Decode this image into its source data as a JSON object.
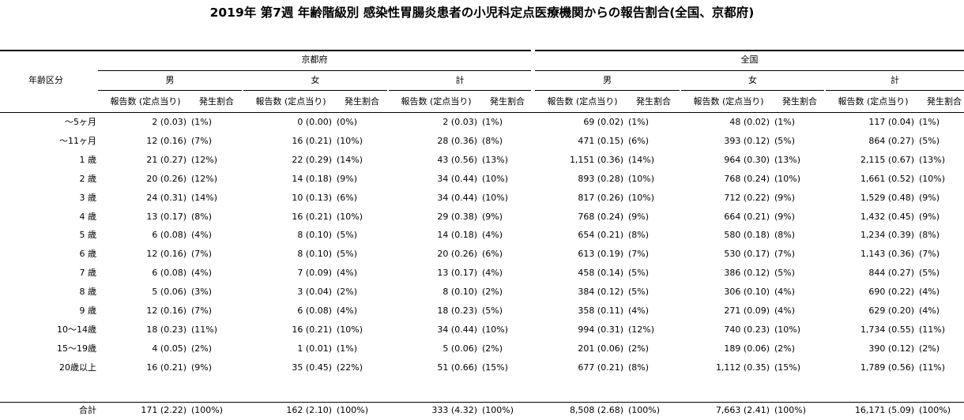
{
  "title": "2019年 第7週 年齢階級別 感染性胃腸炎患者の小児科定点医療機関からの報告割合(全国、京都府)",
  "headers": {
    "age_label": "年齢区分",
    "regions": [
      "京都府",
      "全国"
    ],
    "sexes": [
      "男",
      "女",
      "計"
    ],
    "col_report": "報告数 (定点当り)",
    "col_rate": "発生割合"
  },
  "rows": [
    {
      "age": "～5ヶ月",
      "values": [
        [
          "2 (0.03)",
          "(1%)"
        ],
        [
          "0 (0.00)",
          "(0%)"
        ],
        [
          "2 (0.03)",
          "(1%)"
        ],
        [
          "69 (0.02)",
          "(1%)"
        ],
        [
          "48 (0.02)",
          "(1%)"
        ],
        [
          "117 (0.04)",
          "(1%)"
        ]
      ]
    },
    {
      "age": "～11ヶ月",
      "values": [
        [
          "12 (0.16)",
          "(7%)"
        ],
        [
          "16 (0.21)",
          "(10%)"
        ],
        [
          "28 (0.36)",
          "(8%)"
        ],
        [
          "471 (0.15)",
          "(6%)"
        ],
        [
          "393 (0.12)",
          "(5%)"
        ],
        [
          "864 (0.27)",
          "(5%)"
        ]
      ]
    },
    {
      "age": "1 歳",
      "values": [
        [
          "21 (0.27)",
          "(12%)"
        ],
        [
          "22 (0.29)",
          "(14%)"
        ],
        [
          "43 (0.56)",
          "(13%)"
        ],
        [
          "1,151 (0.36)",
          "(14%)"
        ],
        [
          "964 (0.30)",
          "(13%)"
        ],
        [
          "2,115 (0.67)",
          "(13%)"
        ]
      ]
    },
    {
      "age": "2 歳",
      "values": [
        [
          "20 (0.26)",
          "(12%)"
        ],
        [
          "14 (0.18)",
          "(9%)"
        ],
        [
          "34 (0.44)",
          "(10%)"
        ],
        [
          "893 (0.28)",
          "(10%)"
        ],
        [
          "768 (0.24)",
          "(10%)"
        ],
        [
          "1,661 (0.52)",
          "(10%)"
        ]
      ]
    },
    {
      "age": "3 歳",
      "values": [
        [
          "24 (0.31)",
          "(14%)"
        ],
        [
          "10 (0.13)",
          "(6%)"
        ],
        [
          "34 (0.44)",
          "(10%)"
        ],
        [
          "817 (0.26)",
          "(10%)"
        ],
        [
          "712 (0.22)",
          "(9%)"
        ],
        [
          "1,529 (0.48)",
          "(9%)"
        ]
      ]
    },
    {
      "age": "4 歳",
      "values": [
        [
          "13 (0.17)",
          "(8%)"
        ],
        [
          "16 (0.21)",
          "(10%)"
        ],
        [
          "29 (0.38)",
          "(9%)"
        ],
        [
          "768 (0.24)",
          "(9%)"
        ],
        [
          "664 (0.21)",
          "(9%)"
        ],
        [
          "1,432 (0.45)",
          "(9%)"
        ]
      ]
    },
    {
      "age": "5 歳",
      "values": [
        [
          "6 (0.08)",
          "(4%)"
        ],
        [
          "8 (0.10)",
          "(5%)"
        ],
        [
          "14 (0.18)",
          "(4%)"
        ],
        [
          "654 (0.21)",
          "(8%)"
        ],
        [
          "580 (0.18)",
          "(8%)"
        ],
        [
          "1,234 (0.39)",
          "(8%)"
        ]
      ]
    },
    {
      "age": "6 歳",
      "values": [
        [
          "12 (0.16)",
          "(7%)"
        ],
        [
          "8 (0.10)",
          "(5%)"
        ],
        [
          "20 (0.26)",
          "(6%)"
        ],
        [
          "613 (0.19)",
          "(7%)"
        ],
        [
          "530 (0.17)",
          "(7%)"
        ],
        [
          "1,143 (0.36)",
          "(7%)"
        ]
      ]
    },
    {
      "age": "7 歳",
      "values": [
        [
          "6 (0.08)",
          "(4%)"
        ],
        [
          "7 (0.09)",
          "(4%)"
        ],
        [
          "13 (0.17)",
          "(4%)"
        ],
        [
          "458 (0.14)",
          "(5%)"
        ],
        [
          "386 (0.12)",
          "(5%)"
        ],
        [
          "844 (0.27)",
          "(5%)"
        ]
      ]
    },
    {
      "age": "8 歳",
      "values": [
        [
          "5 (0.06)",
          "(3%)"
        ],
        [
          "3 (0.04)",
          "(2%)"
        ],
        [
          "8 (0.10)",
          "(2%)"
        ],
        [
          "384 (0.12)",
          "(5%)"
        ],
        [
          "306 (0.10)",
          "(4%)"
        ],
        [
          "690 (0.22)",
          "(4%)"
        ]
      ]
    },
    {
      "age": "9 歳",
      "values": [
        [
          "12 (0.16)",
          "(7%)"
        ],
        [
          "6 (0.08)",
          "(4%)"
        ],
        [
          "18 (0.23)",
          "(5%)"
        ],
        [
          "358 (0.11)",
          "(4%)"
        ],
        [
          "271 (0.09)",
          "(4%)"
        ],
        [
          "629 (0.20)",
          "(4%)"
        ]
      ]
    },
    {
      "age": "10～14歳",
      "values": [
        [
          "18 (0.23)",
          "(11%)"
        ],
        [
          "16 (0.21)",
          "(10%)"
        ],
        [
          "34 (0.44)",
          "(10%)"
        ],
        [
          "994 (0.31)",
          "(12%)"
        ],
        [
          "740 (0.23)",
          "(10%)"
        ],
        [
          "1,734 (0.55)",
          "(11%)"
        ]
      ]
    },
    {
      "age": "15～19歳",
      "values": [
        [
          "4 (0.05)",
          "(2%)"
        ],
        [
          "1 (0.01)",
          "(1%)"
        ],
        [
          "5 (0.06)",
          "(2%)"
        ],
        [
          "201 (0.06)",
          "(2%)"
        ],
        [
          "189 (0.06)",
          "(2%)"
        ],
        [
          "390 (0.12)",
          "(2%)"
        ]
      ]
    },
    {
      "age": "20歳以上",
      "values": [
        [
          "16 (0.21)",
          "(9%)"
        ],
        [
          "35 (0.45)",
          "(22%)"
        ],
        [
          "51 (0.66)",
          "(15%)"
        ],
        [
          "677 (0.21)",
          "(8%)"
        ],
        [
          "1,112 (0.35)",
          "(15%)"
        ],
        [
          "1,789 (0.56)",
          "(11%)"
        ]
      ]
    }
  ],
  "total": {
    "age": "合計",
    "values": [
      [
        "171 (2.22)",
        "(100%)"
      ],
      [
        "162 (2.10)",
        "(100%)"
      ],
      [
        "333 (4.32)",
        "(100%)"
      ],
      [
        "8,508 (2.68)",
        "(100%)"
      ],
      [
        "7,663 (2.41)",
        "(100%)"
      ],
      [
        "16,171 (5.09)",
        "(100%)"
      ]
    ]
  }
}
